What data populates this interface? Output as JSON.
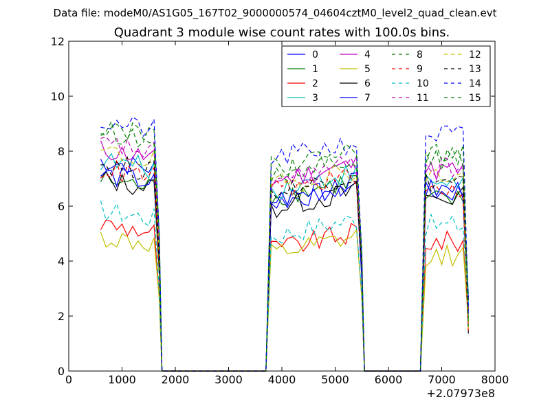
{
  "chart_data": {
    "type": "line",
    "suptitle": "Data file: modeM0/AS1G05_167T02_9000000574_04604cztM0_level2_quad_clean.evt",
    "title": "Quadrant 3 module wise count rates with 100.0s bins.",
    "xlabel": "",
    "ylabel": "",
    "xlim": [
      0,
      8000
    ],
    "ylim": [
      0,
      12
    ],
    "x_ticks": [
      0,
      1000,
      2000,
      3000,
      4000,
      5000,
      6000,
      7000,
      8000
    ],
    "x_tick_labels": [
      "0",
      "1000",
      "2000",
      "3000",
      "4000",
      "5000",
      "6000",
      "7000",
      "8000"
    ],
    "y_ticks": [
      0,
      2,
      4,
      6,
      8,
      10,
      12
    ],
    "y_tick_labels": [
      "0",
      "2",
      "4",
      "6",
      "8",
      "10",
      "12"
    ],
    "x_offset_label": "+2.07973e8",
    "legend_position": "top-right",
    "legend_columns": 4,
    "grid": false,
    "segments": [
      {
        "start": 600,
        "points": 12
      },
      {
        "start": 3800,
        "points": 18
      },
      {
        "start": 6700,
        "points": 9
      }
    ],
    "series": [
      {
        "name": "0",
        "color": "#0000ff",
        "dash": "solid",
        "levels": [
          7.3,
          6.4,
          6.5
        ]
      },
      {
        "name": "1",
        "color": "#008000",
        "dash": "solid",
        "levels": [
          6.6,
          6.6,
          6.2
        ]
      },
      {
        "name": "2",
        "color": "#ff0000",
        "dash": "solid",
        "levels": [
          5.0,
          4.7,
          4.7
        ]
      },
      {
        "name": "3",
        "color": "#00bfbf",
        "dash": "solid",
        "levels": [
          7.3,
          6.9,
          6.9
        ]
      },
      {
        "name": "4",
        "color": "#bf00bf",
        "dash": "solid",
        "levels": [
          7.7,
          7.2,
          7.3
        ]
      },
      {
        "name": "5",
        "color": "#bfbf00",
        "dash": "solid",
        "levels": [
          4.5,
          4.5,
          4.2
        ]
      },
      {
        "name": "6",
        "color": "#000000",
        "dash": "solid",
        "levels": [
          6.6,
          6.2,
          6.3
        ]
      },
      {
        "name": "7",
        "color": "#0000ff",
        "dash": "solid",
        "levels": [
          6.8,
          6.5,
          6.6
        ]
      },
      {
        "name": "8",
        "color": "#008000",
        "dash": "dashed",
        "levels": [
          8.4,
          7.5,
          7.7
        ]
      },
      {
        "name": "9",
        "color": "#ff0000",
        "dash": "dashed",
        "levels": [
          7.0,
          6.8,
          6.6
        ]
      },
      {
        "name": "10",
        "color": "#00bfbf",
        "dash": "dashed",
        "levels": [
          5.5,
          5.2,
          5.3
        ]
      },
      {
        "name": "11",
        "color": "#bf00bf",
        "dash": "dashed",
        "levels": [
          7.9,
          7.2,
          7.4
        ]
      },
      {
        "name": "12",
        "color": "#bfbf00",
        "dash": "dashed",
        "levels": [
          7.6,
          7.0,
          7.1
        ]
      },
      {
        "name": "13",
        "color": "#000000",
        "dash": "dashed",
        "levels": [
          7.2,
          6.8,
          6.9
        ]
      },
      {
        "name": "14",
        "color": "#0000ff",
        "dash": "dashed",
        "levels": [
          8.7,
          8.0,
          8.6
        ]
      },
      {
        "name": "15",
        "color": "#008000",
        "dash": "dashed",
        "levels": [
          8.6,
          7.7,
          7.9
        ]
      }
    ]
  }
}
